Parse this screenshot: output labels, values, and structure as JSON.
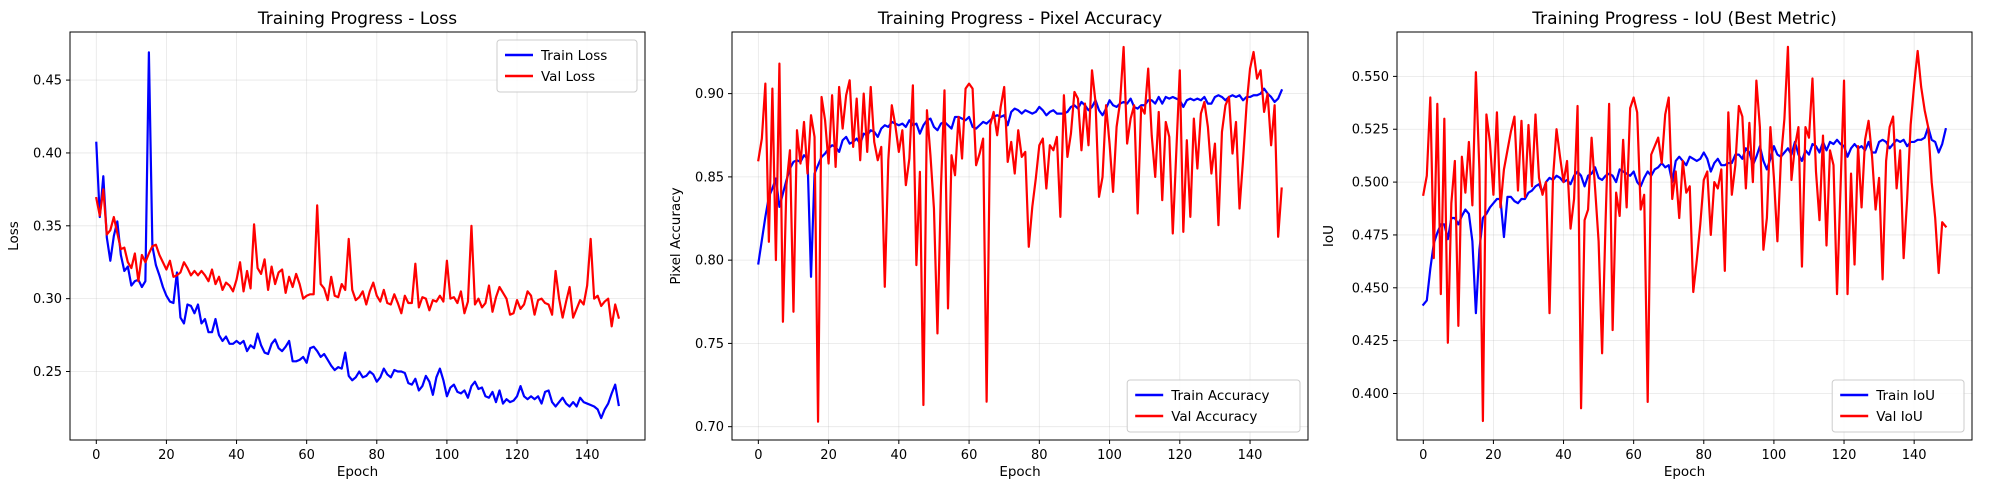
{
  "chart_data": [
    {
      "type": "line",
      "title": "Training Progress - Loss",
      "xlabel": "Epoch",
      "ylabel": "Loss",
      "xlim": [
        -7.5,
        156.5
      ],
      "ylim": [
        0.203,
        0.483
      ],
      "xticks": [
        0,
        20,
        40,
        60,
        80,
        100,
        120,
        140
      ],
      "yticks": [
        0.25,
        0.3,
        0.35,
        0.4,
        0.45
      ],
      "ytick_labels": [
        "0.25",
        "0.30",
        "0.35",
        "0.40",
        "0.45"
      ],
      "grid": true,
      "legend_position": "upper right",
      "series": [
        {
          "name": "Train Loss",
          "color": "#0000ff",
          "values": [
            0.407,
            0.356,
            0.384,
            0.342,
            0.326,
            0.343,
            0.353,
            0.33,
            0.319,
            0.322,
            0.309,
            0.312,
            0.313,
            0.308,
            0.312,
            0.469,
            0.336,
            0.323,
            0.316,
            0.308,
            0.302,
            0.298,
            0.297,
            0.318,
            0.287,
            0.283,
            0.296,
            0.295,
            0.29,
            0.296,
            0.283,
            0.286,
            0.277,
            0.277,
            0.286,
            0.275,
            0.271,
            0.274,
            0.269,
            0.269,
            0.271,
            0.269,
            0.271,
            0.264,
            0.268,
            0.266,
            0.276,
            0.268,
            0.263,
            0.262,
            0.269,
            0.272,
            0.266,
            0.264,
            0.267,
            0.271,
            0.257,
            0.257,
            0.258,
            0.26,
            0.256,
            0.266,
            0.267,
            0.264,
            0.26,
            0.262,
            0.258,
            0.254,
            0.251,
            0.253,
            0.252,
            0.263,
            0.247,
            0.244,
            0.246,
            0.25,
            0.246,
            0.247,
            0.25,
            0.248,
            0.243,
            0.246,
            0.252,
            0.248,
            0.246,
            0.251,
            0.25,
            0.25,
            0.249,
            0.242,
            0.241,
            0.245,
            0.237,
            0.24,
            0.247,
            0.243,
            0.234,
            0.246,
            0.252,
            0.244,
            0.233,
            0.239,
            0.241,
            0.236,
            0.235,
            0.237,
            0.232,
            0.24,
            0.243,
            0.238,
            0.239,
            0.233,
            0.232,
            0.236,
            0.229,
            0.237,
            0.228,
            0.231,
            0.229,
            0.23,
            0.233,
            0.24,
            0.233,
            0.231,
            0.233,
            0.231,
            0.233,
            0.228,
            0.236,
            0.237,
            0.229,
            0.226,
            0.229,
            0.232,
            0.228,
            0.226,
            0.229,
            0.226,
            0.232,
            0.229,
            0.228,
            0.227,
            0.226,
            0.224,
            0.218,
            0.224,
            0.228,
            0.235,
            0.241,
            0.227
          ]
        },
        {
          "name": "Val Loss",
          "color": "#ff0000",
          "values": [
            0.369,
            0.357,
            0.375,
            0.344,
            0.347,
            0.356,
            0.345,
            0.334,
            0.335,
            0.325,
            0.321,
            0.331,
            0.312,
            0.33,
            0.325,
            0.331,
            0.336,
            0.337,
            0.33,
            0.325,
            0.32,
            0.326,
            0.315,
            0.316,
            0.318,
            0.325,
            0.321,
            0.316,
            0.319,
            0.316,
            0.319,
            0.316,
            0.312,
            0.32,
            0.31,
            0.315,
            0.306,
            0.311,
            0.309,
            0.305,
            0.313,
            0.325,
            0.305,
            0.319,
            0.307,
            0.351,
            0.321,
            0.317,
            0.327,
            0.306,
            0.322,
            0.31,
            0.318,
            0.32,
            0.304,
            0.315,
            0.308,
            0.317,
            0.31,
            0.3,
            0.302,
            0.303,
            0.303,
            0.364,
            0.31,
            0.307,
            0.299,
            0.315,
            0.302,
            0.301,
            0.31,
            0.306,
            0.341,
            0.306,
            0.299,
            0.301,
            0.305,
            0.296,
            0.305,
            0.311,
            0.302,
            0.298,
            0.306,
            0.297,
            0.296,
            0.303,
            0.297,
            0.29,
            0.302,
            0.297,
            0.297,
            0.324,
            0.294,
            0.301,
            0.3,
            0.292,
            0.299,
            0.298,
            0.302,
            0.298,
            0.326,
            0.3,
            0.301,
            0.297,
            0.305,
            0.29,
            0.298,
            0.35,
            0.296,
            0.3,
            0.294,
            0.297,
            0.309,
            0.291,
            0.301,
            0.308,
            0.304,
            0.3,
            0.289,
            0.29,
            0.299,
            0.293,
            0.296,
            0.305,
            0.302,
            0.289,
            0.299,
            0.3,
            0.297,
            0.296,
            0.289,
            0.319,
            0.3,
            0.287,
            0.298,
            0.308,
            0.287,
            0.293,
            0.299,
            0.296,
            0.309,
            0.341,
            0.3,
            0.302,
            0.295,
            0.298,
            0.3,
            0.281,
            0.296,
            0.287
          ]
        }
      ]
    },
    {
      "type": "line",
      "title": "Training Progress - Pixel Accuracy",
      "xlabel": "Epoch",
      "ylabel": "Pixel Accuracy",
      "xlim": [
        -7.5,
        156.5
      ],
      "ylim": [
        0.692,
        0.937
      ],
      "xticks": [
        0,
        20,
        40,
        60,
        80,
        100,
        120,
        140
      ],
      "yticks": [
        0.7,
        0.75,
        0.8,
        0.85,
        0.9
      ],
      "ytick_labels": [
        "0.70",
        "0.75",
        "0.80",
        "0.85",
        "0.90"
      ],
      "grid": true,
      "legend_position": "lower right",
      "series": [
        {
          "name": "Train Accuracy",
          "color": "#0000ff",
          "values": [
            0.798,
            0.812,
            0.826,
            0.838,
            0.843,
            0.849,
            0.832,
            0.84,
            0.848,
            0.855,
            0.859,
            0.86,
            0.859,
            0.863,
            0.861,
            0.79,
            0.852,
            0.857,
            0.862,
            0.864,
            0.867,
            0.869,
            0.868,
            0.865,
            0.872,
            0.874,
            0.87,
            0.871,
            0.873,
            0.87,
            0.876,
            0.875,
            0.878,
            0.877,
            0.874,
            0.879,
            0.881,
            0.88,
            0.883,
            0.882,
            0.881,
            0.882,
            0.88,
            0.884,
            0.881,
            0.882,
            0.876,
            0.881,
            0.884,
            0.885,
            0.88,
            0.878,
            0.882,
            0.883,
            0.881,
            0.879,
            0.886,
            0.886,
            0.885,
            0.884,
            0.886,
            0.88,
            0.879,
            0.881,
            0.883,
            0.882,
            0.884,
            0.886,
            0.887,
            0.886,
            0.887,
            0.881,
            0.889,
            0.891,
            0.89,
            0.888,
            0.89,
            0.889,
            0.888,
            0.889,
            0.892,
            0.89,
            0.887,
            0.889,
            0.89,
            0.888,
            0.888,
            0.888,
            0.889,
            0.892,
            0.893,
            0.891,
            0.895,
            0.893,
            0.89,
            0.892,
            0.896,
            0.89,
            0.887,
            0.891,
            0.896,
            0.893,
            0.892,
            0.894,
            0.895,
            0.894,
            0.897,
            0.892,
            0.891,
            0.893,
            0.893,
            0.896,
            0.896,
            0.894,
            0.898,
            0.894,
            0.898,
            0.897,
            0.898,
            0.897,
            0.896,
            0.892,
            0.896,
            0.897,
            0.896,
            0.897,
            0.896,
            0.898,
            0.894,
            0.894,
            0.898,
            0.899,
            0.898,
            0.896,
            0.898,
            0.899,
            0.898,
            0.899,
            0.896,
            0.898,
            0.898,
            0.899,
            0.899,
            0.9,
            0.903,
            0.9,
            0.898,
            0.895,
            0.897,
            0.902
          ]
        },
        {
          "name": "Val Accuracy",
          "color": "#ff0000",
          "values": [
            0.86,
            0.873,
            0.906,
            0.811,
            0.903,
            0.8,
            0.918,
            0.763,
            0.845,
            0.866,
            0.769,
            0.878,
            0.858,
            0.883,
            0.852,
            0.887,
            0.874,
            0.703,
            0.898,
            0.884,
            0.858,
            0.899,
            0.856,
            0.904,
            0.879,
            0.899,
            0.908,
            0.868,
            0.897,
            0.86,
            0.9,
            0.865,
            0.904,
            0.871,
            0.86,
            0.868,
            0.784,
            0.86,
            0.893,
            0.881,
            0.865,
            0.878,
            0.845,
            0.861,
            0.905,
            0.797,
            0.853,
            0.713,
            0.89,
            0.863,
            0.831,
            0.756,
            0.844,
            0.902,
            0.771,
            0.863,
            0.851,
            0.886,
            0.861,
            0.903,
            0.906,
            0.903,
            0.857,
            0.864,
            0.873,
            0.715,
            0.881,
            0.889,
            0.875,
            0.892,
            0.904,
            0.859,
            0.871,
            0.852,
            0.878,
            0.862,
            0.865,
            0.808,
            0.832,
            0.849,
            0.869,
            0.873,
            0.843,
            0.869,
            0.866,
            0.874,
            0.826,
            0.899,
            0.862,
            0.876,
            0.901,
            0.897,
            0.866,
            0.894,
            0.869,
            0.914,
            0.895,
            0.838,
            0.85,
            0.893,
            0.87,
            0.841,
            0.88,
            0.895,
            0.928,
            0.87,
            0.885,
            0.893,
            0.828,
            0.892,
            0.888,
            0.915,
            0.875,
            0.85,
            0.889,
            0.836,
            0.883,
            0.874,
            0.816,
            0.865,
            0.914,
            0.817,
            0.872,
            0.826,
            0.885,
            0.855,
            0.888,
            0.895,
            0.88,
            0.852,
            0.87,
            0.821,
            0.877,
            0.893,
            0.898,
            0.864,
            0.883,
            0.831,
            0.86,
            0.893,
            0.915,
            0.925,
            0.909,
            0.914,
            0.889,
            0.9,
            0.869,
            0.893,
            0.814,
            0.843
          ]
        }
      ]
    },
    {
      "type": "line",
      "title": "Training Progress - IoU (Best Metric)",
      "xlabel": "Epoch",
      "ylabel": "IoU",
      "xlim": [
        -7.5,
        156.5
      ],
      "ylim": [
        0.378,
        0.571
      ],
      "xticks": [
        0,
        20,
        40,
        60,
        80,
        100,
        120,
        140
      ],
      "yticks": [
        0.4,
        0.425,
        0.45,
        0.475,
        0.5,
        0.525,
        0.55
      ],
      "ytick_labels": [
        "0.400",
        "0.425",
        "0.450",
        "0.475",
        "0.500",
        "0.525",
        "0.550"
      ],
      "grid": true,
      "legend_position": "lower right",
      "series": [
        {
          "name": "Train IoU",
          "color": "#0000ff",
          "values": [
            0.442,
            0.444,
            0.459,
            0.471,
            0.476,
            0.48,
            0.48,
            0.473,
            0.483,
            0.483,
            0.48,
            0.484,
            0.487,
            0.485,
            0.472,
            0.438,
            0.468,
            0.483,
            0.485,
            0.488,
            0.49,
            0.492,
            0.492,
            0.474,
            0.493,
            0.493,
            0.491,
            0.49,
            0.492,
            0.492,
            0.495,
            0.496,
            0.498,
            0.499,
            0.495,
            0.5,
            0.502,
            0.501,
            0.503,
            0.502,
            0.5,
            0.501,
            0.499,
            0.503,
            0.505,
            0.503,
            0.498,
            0.503,
            0.504,
            0.507,
            0.502,
            0.501,
            0.503,
            0.504,
            0.503,
            0.5,
            0.506,
            0.505,
            0.504,
            0.503,
            0.505,
            0.5,
            0.498,
            0.502,
            0.505,
            0.503,
            0.506,
            0.507,
            0.509,
            0.507,
            0.508,
            0.5,
            0.51,
            0.512,
            0.51,
            0.508,
            0.512,
            0.511,
            0.51,
            0.511,
            0.514,
            0.511,
            0.505,
            0.509,
            0.511,
            0.508,
            0.508,
            0.509,
            0.509,
            0.513,
            0.513,
            0.511,
            0.516,
            0.514,
            0.508,
            0.512,
            0.517,
            0.51,
            0.506,
            0.511,
            0.517,
            0.513,
            0.512,
            0.514,
            0.516,
            0.513,
            0.519,
            0.513,
            0.51,
            0.515,
            0.513,
            0.518,
            0.517,
            0.514,
            0.519,
            0.515,
            0.519,
            0.518,
            0.52,
            0.518,
            0.517,
            0.512,
            0.516,
            0.518,
            0.516,
            0.517,
            0.515,
            0.519,
            0.514,
            0.514,
            0.519,
            0.52,
            0.519,
            0.516,
            0.518,
            0.52,
            0.519,
            0.52,
            0.517,
            0.519,
            0.519,
            0.52,
            0.52,
            0.521,
            0.526,
            0.52,
            0.519,
            0.514,
            0.518,
            0.525
          ]
        },
        {
          "name": "Val IoU",
          "color": "#ff0000",
          "values": [
            0.494,
            0.503,
            0.54,
            0.464,
            0.537,
            0.447,
            0.53,
            0.424,
            0.49,
            0.51,
            0.432,
            0.512,
            0.495,
            0.519,
            0.489,
            0.552,
            0.506,
            0.387,
            0.532,
            0.519,
            0.494,
            0.533,
            0.488,
            0.506,
            0.515,
            0.524,
            0.531,
            0.496,
            0.529,
            0.493,
            0.527,
            0.498,
            0.532,
            0.502,
            0.494,
            0.5,
            0.438,
            0.502,
            0.525,
            0.512,
            0.5,
            0.51,
            0.478,
            0.492,
            0.536,
            0.393,
            0.482,
            0.487,
            0.521,
            0.497,
            0.472,
            0.419,
            0.482,
            0.537,
            0.43,
            0.495,
            0.484,
            0.52,
            0.488,
            0.535,
            0.54,
            0.533,
            0.487,
            0.494,
            0.396,
            0.513,
            0.517,
            0.521,
            0.509,
            0.532,
            0.54,
            0.492,
            0.505,
            0.483,
            0.51,
            0.495,
            0.498,
            0.448,
            0.463,
            0.48,
            0.501,
            0.505,
            0.475,
            0.5,
            0.497,
            0.506,
            0.458,
            0.533,
            0.494,
            0.508,
            0.536,
            0.531,
            0.497,
            0.528,
            0.5,
            0.548,
            0.526,
            0.468,
            0.483,
            0.526,
            0.502,
            0.472,
            0.511,
            0.53,
            0.564,
            0.501,
            0.517,
            0.526,
            0.46,
            0.526,
            0.521,
            0.549,
            0.505,
            0.482,
            0.522,
            0.47,
            0.515,
            0.508,
            0.447,
            0.497,
            0.548,
            0.447,
            0.504,
            0.461,
            0.517,
            0.488,
            0.52,
            0.529,
            0.512,
            0.487,
            0.502,
            0.454,
            0.51,
            0.526,
            0.531,
            0.497,
            0.515,
            0.464,
            0.492,
            0.527,
            0.546,
            0.562,
            0.545,
            0.534,
            0.526,
            0.5,
            0.483,
            0.457,
            0.481,
            0.479
          ]
        }
      ]
    }
  ]
}
